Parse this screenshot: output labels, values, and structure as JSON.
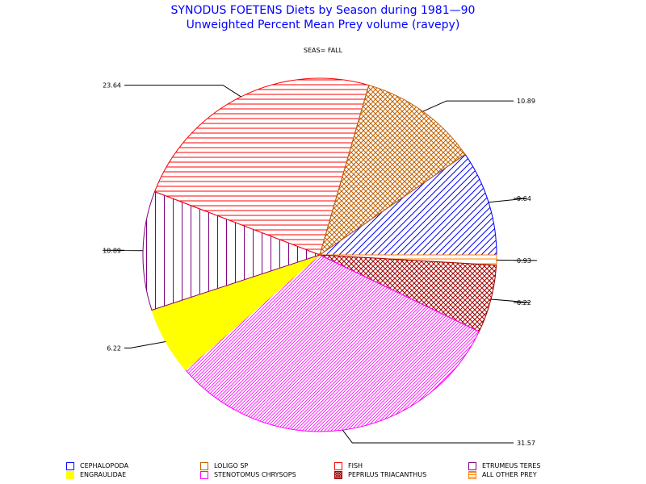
{
  "chart_data": {
    "type": "pie",
    "title": "SYNODUS FOETENS Diets by Season during 1981—90",
    "subtitle": "Unweighted Percent Mean Prey volume (ravepy)",
    "panel_label": "SEAS= FALL",
    "slices": [
      {
        "name": "CEPHALOPODA",
        "value": 9.64,
        "label": "9.64",
        "color": "#0000ff",
        "fill": "solid_hatch"
      },
      {
        "name": "ALL OTHER PREY",
        "value": 0.93,
        "label": "0.93",
        "color": "#ff8000",
        "fill": "hhatch"
      },
      {
        "name": "PEPRILUS TRIACANTHUS",
        "value": 6.22,
        "label": "6.22",
        "color": "#a00000",
        "fill": "xhatch"
      },
      {
        "name": "STENOTOMUS CHRYSOPS",
        "value": 31.57,
        "label": "31.57",
        "color": "#ff00ff",
        "fill": "dhatch"
      },
      {
        "name": "ENGRAULIDAE",
        "value": 6.22,
        "label": "6.22",
        "color": "#ffff00",
        "fill": "solid"
      },
      {
        "name": "ETRUMEUS TERES",
        "value": 10.89,
        "label": "10.89",
        "color": "#800080",
        "fill": "vhatch"
      },
      {
        "name": "FISH",
        "value": 23.64,
        "label": "23.64",
        "color": "#ff0000",
        "fill": "hhatch"
      },
      {
        "name": "LOLIGO SP",
        "value": 10.89,
        "label": "10.89",
        "color": "#c06000",
        "fill": "xhatch"
      }
    ],
    "legend": [
      {
        "name": "CEPHALOPODA",
        "color": "#0000ff",
        "fill": "outline"
      },
      {
        "name": "LOLIGO SP",
        "color": "#c06000",
        "fill": "outline"
      },
      {
        "name": "FISH",
        "color": "#ff0000",
        "fill": "outline"
      },
      {
        "name": "ETRUMEUS TERES",
        "color": "#800080",
        "fill": "outline"
      },
      {
        "name": "ENGRAULIDAE",
        "color": "#ffff00",
        "fill": "solid"
      },
      {
        "name": "STENOTOMUS CHRYSOPS",
        "color": "#ff00ff",
        "fill": "outline"
      },
      {
        "name": "PEPRILUS TRIACANTHUS",
        "color": "#a00000",
        "fill": "xhatch"
      },
      {
        "name": "ALL OTHER PREY",
        "color": "#ff8000",
        "fill": "hhatch"
      }
    ]
  }
}
